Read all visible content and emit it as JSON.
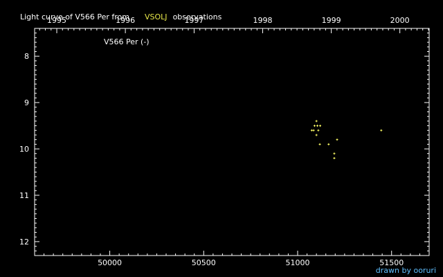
{
  "header": {
    "prefix": "Light curve of V566 Per from",
    "source": "VSOLJ",
    "suffix": "observations",
    "source_color": "#e8e84a"
  },
  "footer": {
    "credit": "drawn by ooruri",
    "color": "#5fbfff"
  },
  "chart_data": {
    "type": "scatter",
    "title": "Light curve of V566 Per from VSOLJ observations",
    "star_label": "V566 Per (-)",
    "x_axis": {
      "label": "",
      "range": [
        49600,
        51700
      ],
      "ticks": [
        50000,
        50500,
        51000,
        51500
      ],
      "tick_labels": [
        "50000",
        "50500",
        "51000",
        "51500"
      ],
      "minor_step": 50
    },
    "top_axis": {
      "tick_labels": [
        "1995",
        "1996",
        "1997",
        "1998",
        "1999",
        "2000"
      ],
      "ticks_jd": [
        49718,
        50083,
        50449,
        50814,
        51179,
        51544
      ]
    },
    "y_axis": {
      "label": "",
      "range": [
        7.4,
        12.3
      ],
      "inverted": true,
      "ticks": [
        8,
        9,
        10,
        11,
        12
      ],
      "tick_labels": [
        "8",
        "9",
        "10",
        "11",
        "12"
      ],
      "minor_step": 0.1
    },
    "grid": false,
    "point_color": "#ffff66",
    "series": [
      {
        "points": [
          [
            51100,
            9.4
          ],
          [
            51090,
            9.5
          ],
          [
            51105,
            9.5
          ],
          [
            51120,
            9.5
          ],
          [
            51075,
            9.6
          ],
          [
            51085,
            9.6
          ],
          [
            51110,
            9.6
          ],
          [
            51100,
            9.7
          ],
          [
            51118,
            9.9
          ],
          [
            51165,
            9.9
          ],
          [
            51210,
            9.8
          ],
          [
            51195,
            10.1
          ],
          [
            51195,
            10.2
          ],
          [
            51445,
            9.6
          ]
        ]
      }
    ]
  }
}
